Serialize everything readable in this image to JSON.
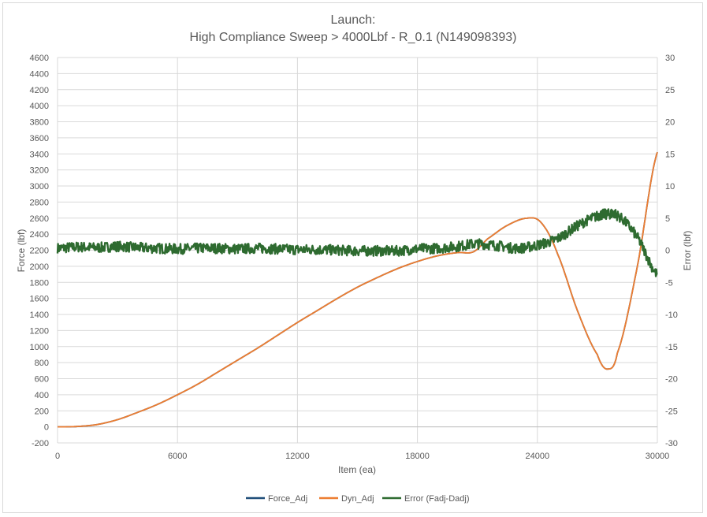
{
  "chart_data": {
    "type": "line",
    "title": [
      "Launch:",
      "High Compliance Sweep > 4000Lbf - R_0.1 (N149098393)"
    ],
    "xlabel": "Item (ea)",
    "ylabel": "Force (lbf)",
    "y2label": "Error (lbf)",
    "xlim": [
      0,
      30000
    ],
    "ylim": [
      -200,
      4600
    ],
    "y2lim": [
      -30,
      30
    ],
    "x_ticks": [
      0,
      6000,
      12000,
      18000,
      24000,
      30000
    ],
    "y_ticks": [
      -200,
      0,
      200,
      400,
      600,
      800,
      1000,
      1200,
      1400,
      1600,
      1800,
      2000,
      2200,
      2400,
      2600,
      2800,
      3000,
      3200,
      3400,
      3600,
      3800,
      4000,
      4200,
      4400,
      4600
    ],
    "y2_ticks": [
      -30,
      -25,
      -20,
      -15,
      -10,
      -5,
      0,
      5,
      10,
      15,
      20,
      25,
      30
    ],
    "grid": true,
    "legend_position": "bottom",
    "series": [
      {
        "name": "Force_Adj",
        "axis": "left",
        "color": "#1f4e79",
        "x": [
          0,
          1000,
          2000,
          3000,
          4000,
          5000,
          6000,
          7000,
          8000,
          9000,
          10000,
          11000,
          12000,
          13000,
          14000,
          15000,
          16000,
          17000,
          18000,
          19000,
          20000,
          20800,
          21500,
          22500,
          23500,
          24200,
          25000,
          26000,
          27000,
          27500,
          28000,
          29000,
          30000
        ],
        "values": [
          0,
          5,
          30,
          90,
          180,
          280,
          400,
          530,
          680,
          830,
          980,
          1140,
          1300,
          1450,
          1600,
          1740,
          1860,
          1970,
          2060,
          2130,
          2170,
          2180,
          2340,
          2510,
          2600,
          2540,
          2160,
          1450,
          900,
          720,
          920,
          2000,
          3420
        ]
      },
      {
        "name": "Dyn_Adj",
        "axis": "left",
        "color": "#ed7d31",
        "x": [
          0,
          1000,
          2000,
          3000,
          4000,
          5000,
          6000,
          7000,
          8000,
          9000,
          10000,
          11000,
          12000,
          13000,
          14000,
          15000,
          16000,
          17000,
          18000,
          19000,
          20000,
          20800,
          21500,
          22500,
          23500,
          24200,
          25000,
          26000,
          27000,
          27500,
          28000,
          29000,
          30000
        ],
        "values": [
          0,
          5,
          30,
          90,
          180,
          280,
          400,
          530,
          680,
          830,
          980,
          1140,
          1300,
          1450,
          1600,
          1740,
          1860,
          1970,
          2060,
          2130,
          2170,
          2180,
          2340,
          2510,
          2600,
          2540,
          2160,
          1450,
          900,
          720,
          920,
          2000,
          3420
        ]
      },
      {
        "name": "Error (Fadj-Dadj)",
        "axis": "right",
        "color": "#2e6b30",
        "x": [
          0,
          1000,
          2000,
          3000,
          4000,
          5000,
          6000,
          7000,
          8000,
          9000,
          10000,
          11000,
          12000,
          13000,
          14000,
          15000,
          16000,
          17000,
          18000,
          19000,
          20000,
          21000,
          22000,
          23000,
          24000,
          25000,
          26000,
          27000,
          27500,
          28000,
          29000,
          30000
        ],
        "values": [
          0.3,
          0.5,
          0.4,
          0.6,
          0.4,
          0.3,
          0.2,
          0.3,
          0.3,
          0.2,
          0.3,
          0.2,
          0.1,
          0.1,
          0.0,
          -0.1,
          -0.1,
          -0.1,
          0.2,
          0.3,
          0.6,
          1.0,
          0.7,
          0.3,
          0.8,
          1.8,
          3.8,
          5.3,
          5.6,
          5.4,
          2.0,
          -3.8
        ]
      }
    ]
  }
}
